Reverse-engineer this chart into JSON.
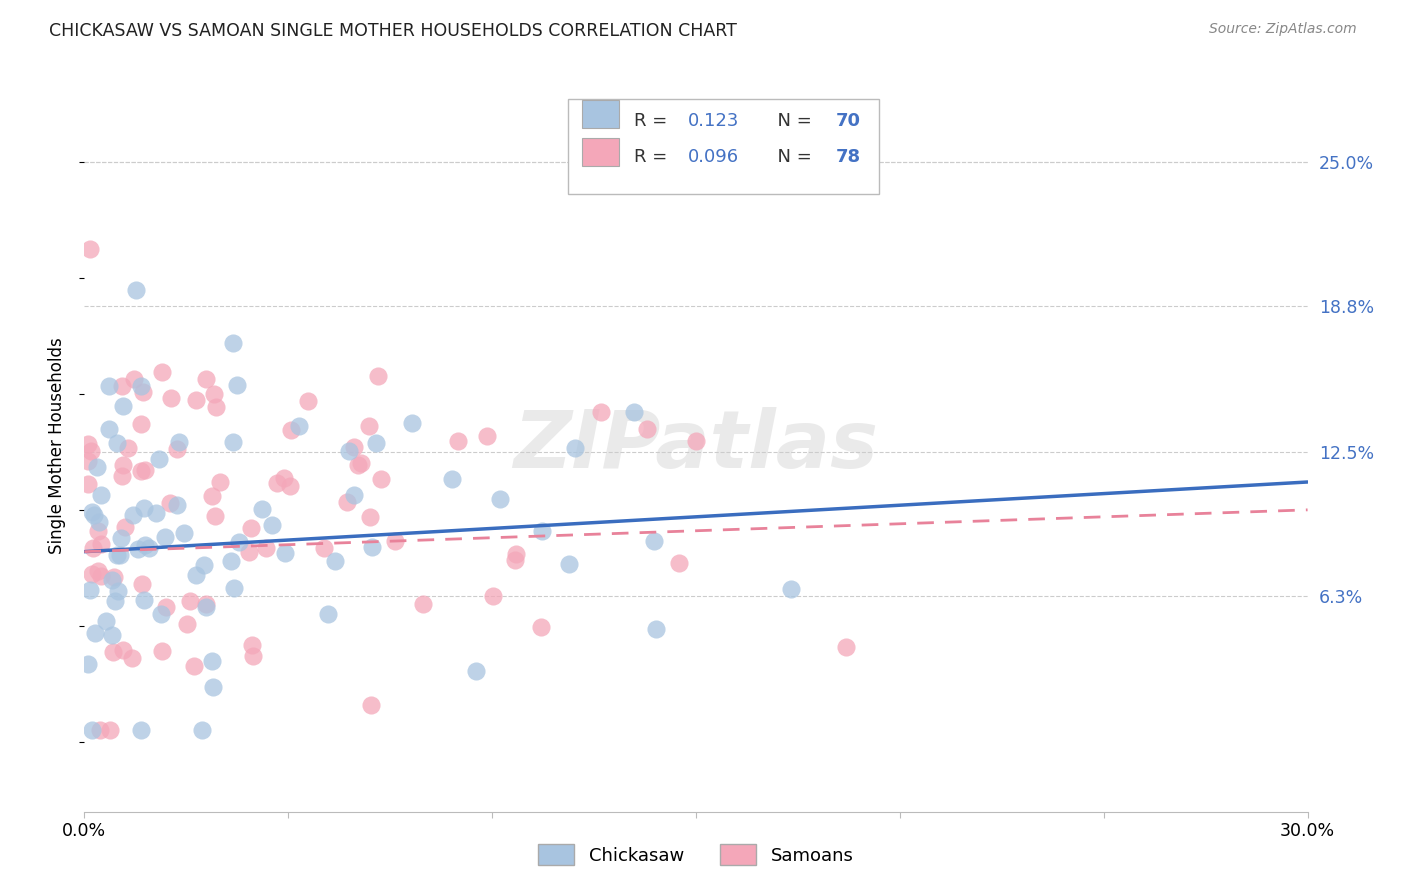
{
  "title": "CHICKASAW VS SAMOAN SINGLE MOTHER HOUSEHOLDS CORRELATION CHART",
  "source": "Source: ZipAtlas.com",
  "ylabel": "Single Mother Households",
  "ytick_labels": [
    "6.3%",
    "12.5%",
    "18.8%",
    "25.0%"
  ],
  "ytick_values": [
    0.063,
    0.125,
    0.188,
    0.25
  ],
  "xlim": [
    0.0,
    0.3
  ],
  "ylim": [
    -0.03,
    0.285
  ],
  "r_chickasaw": 0.123,
  "n_chickasaw": 70,
  "r_samoan": 0.096,
  "n_samoan": 78,
  "chickasaw_color": "#a8c4e0",
  "samoan_color": "#f4a7b9",
  "trendline_chickasaw_color": "#3a6dbf",
  "trendline_samoan_color": "#e8829a",
  "legend_label_chickasaw": "Chickasaw",
  "legend_label_samoan": "Samoans",
  "watermark": "ZIPatlas",
  "blue_label": "#4472C4",
  "dark_text": "#333333"
}
